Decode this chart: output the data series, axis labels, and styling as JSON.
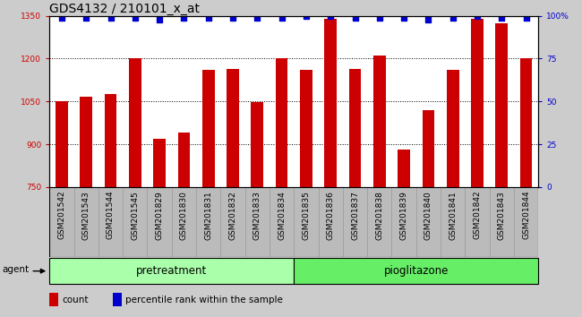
{
  "title": "GDS4132 / 210101_x_at",
  "categories": [
    "GSM201542",
    "GSM201543",
    "GSM201544",
    "GSM201545",
    "GSM201829",
    "GSM201830",
    "GSM201831",
    "GSM201832",
    "GSM201833",
    "GSM201834",
    "GSM201835",
    "GSM201836",
    "GSM201837",
    "GSM201838",
    "GSM201839",
    "GSM201840",
    "GSM201841",
    "GSM201842",
    "GSM201843",
    "GSM201844"
  ],
  "bar_values": [
    1052,
    1068,
    1075,
    1200,
    920,
    940,
    1160,
    1165,
    1048,
    1200,
    1160,
    1340,
    1165,
    1210,
    880,
    1020,
    1160,
    1340,
    1325,
    1200
  ],
  "percentile_values": [
    99,
    99,
    99,
    99,
    98,
    99,
    99,
    99,
    99,
    99,
    100,
    100,
    99,
    99,
    99,
    98,
    99,
    100,
    99,
    99
  ],
  "bar_color": "#cc0000",
  "percentile_color": "#0000cc",
  "ylim_left": [
    750,
    1350
  ],
  "ylim_right": [
    0,
    100
  ],
  "yticks_left": [
    750,
    900,
    1050,
    1200,
    1350
  ],
  "yticks_right": [
    0,
    25,
    50,
    75,
    100
  ],
  "group_labels": [
    "pretreatment",
    "pioglitazone"
  ],
  "group_colors": [
    "#aaffaa",
    "#66ee66"
  ],
  "agent_label": "agent",
  "legend_items": [
    "count",
    "percentile rank within the sample"
  ],
  "background_color": "#cccccc",
  "xtick_bg_color": "#bbbbbb",
  "plot_bg_color": "#ffffff",
  "bar_width": 0.5,
  "title_fontsize": 10,
  "tick_fontsize": 6.5,
  "label_fontsize": 8.5,
  "legend_fontsize": 7.5
}
